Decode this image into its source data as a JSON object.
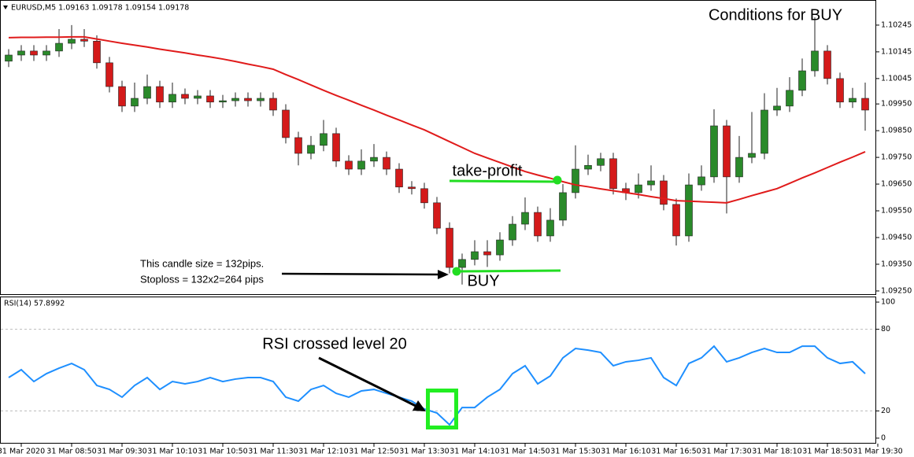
{
  "chart_data": [
    {
      "type": "candlestick",
      "title": "EURUSD,M5  1.09163 1.09178 1.09154 1.09178",
      "open": [
        1.1011,
        1.10133,
        1.10148,
        1.10133,
        1.10148,
        1.10177,
        1.10192,
        1.10185,
        1.10104,
        1.10015,
        1.09942,
        1.09971,
        1.10015,
        1.09957,
        1.09986,
        1.09971,
        1.0998,
        1.09957,
        1.09962,
        1.09971,
        1.09962,
        1.09971,
        1.09927,
        1.09824,
        1.09765,
        1.09795,
        1.09839,
        1.09736,
        1.09706,
        1.09736,
        1.0975,
        1.09706,
        1.09639,
        1.09633,
        1.0958,
        1.09485,
        1.09338,
        1.09368,
        1.09397,
        1.09385,
        1.09441,
        1.095,
        1.09544,
        1.09456,
        1.09515,
        1.09618,
        1.09706,
        1.0972,
        1.09745,
        1.09633,
        1.09618,
        1.09647,
        1.09662,
        1.09574,
        1.09456,
        1.09647,
        1.09677,
        1.09868,
        1.09677,
        1.0975,
        1.09765,
        1.09927,
        1.09942,
        1.10001,
        1.10074,
        1.10148,
        1.10045,
        1.09957,
        1.09971,
        null
      ],
      "high": [
        1.10155,
        1.1017,
        1.1017,
        1.1017,
        1.1023,
        1.10245,
        1.1023,
        1.10207,
        1.10126,
        1.10037,
        1.1003,
        1.1006,
        1.10037,
        1.1003,
        1.10008,
        1.10002,
        1.10002,
        1.09984,
        1.09993,
        1.09993,
        1.09993,
        1.09993,
        1.09949,
        1.09846,
        1.0983,
        1.0989,
        1.09861,
        1.09758,
        1.0978,
        1.098,
        1.09772,
        1.09728,
        1.09661,
        1.09655,
        1.09602,
        1.09507,
        1.0939,
        1.0944,
        1.0944,
        1.0947,
        1.0953,
        1.096,
        1.09566,
        1.0956,
        1.0965,
        1.09795,
        1.0976,
        1.09767,
        1.09767,
        1.09655,
        1.0969,
        1.0972,
        1.09684,
        1.09596,
        1.0969,
        1.0972,
        1.0993,
        1.0989,
        1.0983,
        1.0992,
        1.0999,
        1.1001,
        1.1005,
        1.1012,
        1.10274,
        1.1017,
        1.10067,
        1.1001,
        1.1003,
        null
      ],
      "low": [
        1.10088,
        1.10111,
        1.10111,
        1.10111,
        1.10126,
        1.10155,
        1.10163,
        1.10082,
        1.09993,
        1.0992,
        1.0992,
        1.09949,
        1.09935,
        1.09935,
        1.09949,
        1.09949,
        1.09935,
        1.09935,
        1.0994,
        1.0994,
        1.0994,
        1.09905,
        1.09802,
        1.0972,
        1.09743,
        1.09773,
        1.09714,
        1.09684,
        1.09684,
        1.09714,
        1.09684,
        1.09617,
        1.09611,
        1.09558,
        1.09463,
        1.09316,
        1.09274,
        1.09346,
        1.0934,
        1.09363,
        1.09419,
        1.09478,
        1.09434,
        1.09434,
        1.09493,
        1.09596,
        1.09684,
        1.09698,
        1.09611,
        1.0959,
        1.09596,
        1.09625,
        1.09552,
        1.0942,
        1.09434,
        1.09625,
        1.09655,
        1.0954,
        1.09655,
        1.09728,
        1.09743,
        1.09905,
        1.0992,
        1.09979,
        1.10052,
        1.10023,
        1.09935,
        1.09935,
        1.0985,
        null
      ],
      "close": [
        1.10133,
        1.10148,
        1.10133,
        1.10148,
        1.10177,
        1.10192,
        1.10185,
        1.10104,
        1.10015,
        1.09942,
        1.09971,
        1.10015,
        1.09957,
        1.09986,
        1.09971,
        1.0998,
        1.09957,
        1.09962,
        1.09971,
        1.09962,
        1.09971,
        1.09927,
        1.09824,
        1.09765,
        1.09795,
        1.09839,
        1.09736,
        1.09706,
        1.09736,
        1.0975,
        1.09706,
        1.09639,
        1.09633,
        1.0958,
        1.09485,
        1.09338,
        1.09368,
        1.09397,
        1.09385,
        1.09441,
        1.095,
        1.09544,
        1.09456,
        1.09515,
        1.09618,
        1.09706,
        1.0972,
        1.09745,
        1.09633,
        1.09618,
        1.09647,
        1.09662,
        1.09574,
        1.09456,
        1.09647,
        1.09677,
        1.09868,
        1.09677,
        1.0975,
        1.09765,
        1.09927,
        1.09942,
        1.10001,
        1.10074,
        1.10148,
        1.10045,
        1.09957,
        1.09971,
        1.09927,
        null
      ],
      "up_color": "#2a8a2a",
      "down_color": "#d41a1a",
      "moving_average": {
        "color": "#e01b1b",
        "values": [
          1.10198,
          1.10199,
          1.10199,
          1.102,
          1.102,
          1.10201,
          1.10201,
          1.10193,
          1.10185,
          1.10177,
          1.1017,
          1.10163,
          1.10155,
          1.10148,
          1.10141,
          1.10133,
          1.10126,
          1.10118,
          1.10109,
          1.10099,
          1.1009,
          1.1008,
          1.1006,
          1.10041,
          1.10021,
          1.10001,
          1.09982,
          1.09964,
          1.09945,
          1.09927,
          1.09908,
          1.0989,
          1.09871,
          1.09853,
          1.09831,
          1.09809,
          1.09787,
          1.09765,
          1.09748,
          1.09731,
          1.09714,
          1.09697,
          1.09684,
          1.09672,
          1.09659,
          1.09647,
          1.0964,
          1.09632,
          1.09625,
          1.09618,
          1.09611,
          1.09603,
          1.09596,
          1.09588,
          1.09586,
          1.09584,
          1.09582,
          1.0958,
          1.09593,
          1.09607,
          1.0962,
          1.09633,
          1.09653,
          1.09673,
          1.09692,
          1.09712,
          1.09732,
          1.09751,
          1.09771,
          null
        ]
      },
      "ylim": [
        1.09238,
        1.10339
      ],
      "yticks": [
        1.10245,
        1.10145,
        1.10045,
        {
          "value": 1.0995,
          "label": "1.09950"
        },
        {
          "value": 1.0985,
          "label": "1.09850"
        },
        {
          "value": 1.0975,
          "label": "1.09750"
        },
        {
          "value": 1.0965,
          "label": "1.09650"
        },
        {
          "value": 1.0955,
          "label": "1.09550"
        },
        {
          "value": 1.0945,
          "label": "1.09450"
        },
        {
          "value": 1.0935,
          "label": "1.09350"
        },
        {
          "value": 1.0925,
          "label": "1.09250"
        }
      ],
      "annotations": [
        "Conditions for BUY",
        "take-profit",
        "BUY",
        "This candle size = 132pips.",
        "Stoploss = 132x2=264 pips"
      ]
    },
    {
      "type": "line",
      "title": "RSI(14) 57.8992",
      "categories": [
        null,
        "31 Mar 2020",
        null,
        null,
        null,
        "31 Mar 08:50",
        null,
        null,
        null,
        "31 Mar 09:30",
        null,
        null,
        null,
        "31 Mar 10:10",
        null,
        null,
        null,
        "31 Mar 10:50",
        null,
        null,
        null,
        "31 Mar 11:30",
        null,
        null,
        null,
        "31 Mar 12:10",
        null,
        null,
        null,
        "31 Mar 12:50",
        null,
        null,
        null,
        "31 Mar 13:30",
        null,
        null,
        null,
        "31 Mar 14:10",
        null,
        null,
        null,
        "31 Mar 14:50",
        null,
        null,
        null,
        "31 Mar 15:30",
        null,
        null,
        null,
        "31 Mar 16:10",
        null,
        null,
        null,
        "31 Mar 16:50",
        null,
        null,
        null,
        "31 Mar 17:30",
        null,
        null,
        null,
        "31 Mar 18:10",
        null,
        null,
        null,
        "31 Mar 18:50",
        null,
        null,
        null,
        "31 Mar 19:30"
      ],
      "color": "#1e8fff",
      "values": [
        44.5,
        50.3,
        41.6,
        47.4,
        51.4,
        54.9,
        50.3,
        38.7,
        35.8,
        30.1,
        38.7,
        44.5,
        35.8,
        41.6,
        39.9,
        41.6,
        44.5,
        41.6,
        43.4,
        44.5,
        44.5,
        41.6,
        30.1,
        27.2,
        35.8,
        38.7,
        32.9,
        30.1,
        34.7,
        35.8,
        32.9,
        30.1,
        27.2,
        21.4,
        18.5,
        9.8,
        22.5,
        22.5,
        30.1,
        35.8,
        47.4,
        53.2,
        39.9,
        45.7,
        59.0,
        65.9,
        64.7,
        63.0,
        53.2,
        56.1,
        57.2,
        59.0,
        44.5,
        38.7,
        54.9,
        59.0,
        67.6,
        56.1,
        59.0,
        63.0,
        65.9,
        63.0,
        63.0,
        67.6,
        67.6,
        59.0,
        54.9,
        56.1,
        47.4,
        null
      ],
      "ylim": [
        -2.9,
        103.5
      ],
      "yticks": [
        0,
        20,
        80,
        100
      ],
      "levels": [
        20,
        80
      ],
      "annotations": [
        "RSI crossed level 20"
      ]
    }
  ]
}
